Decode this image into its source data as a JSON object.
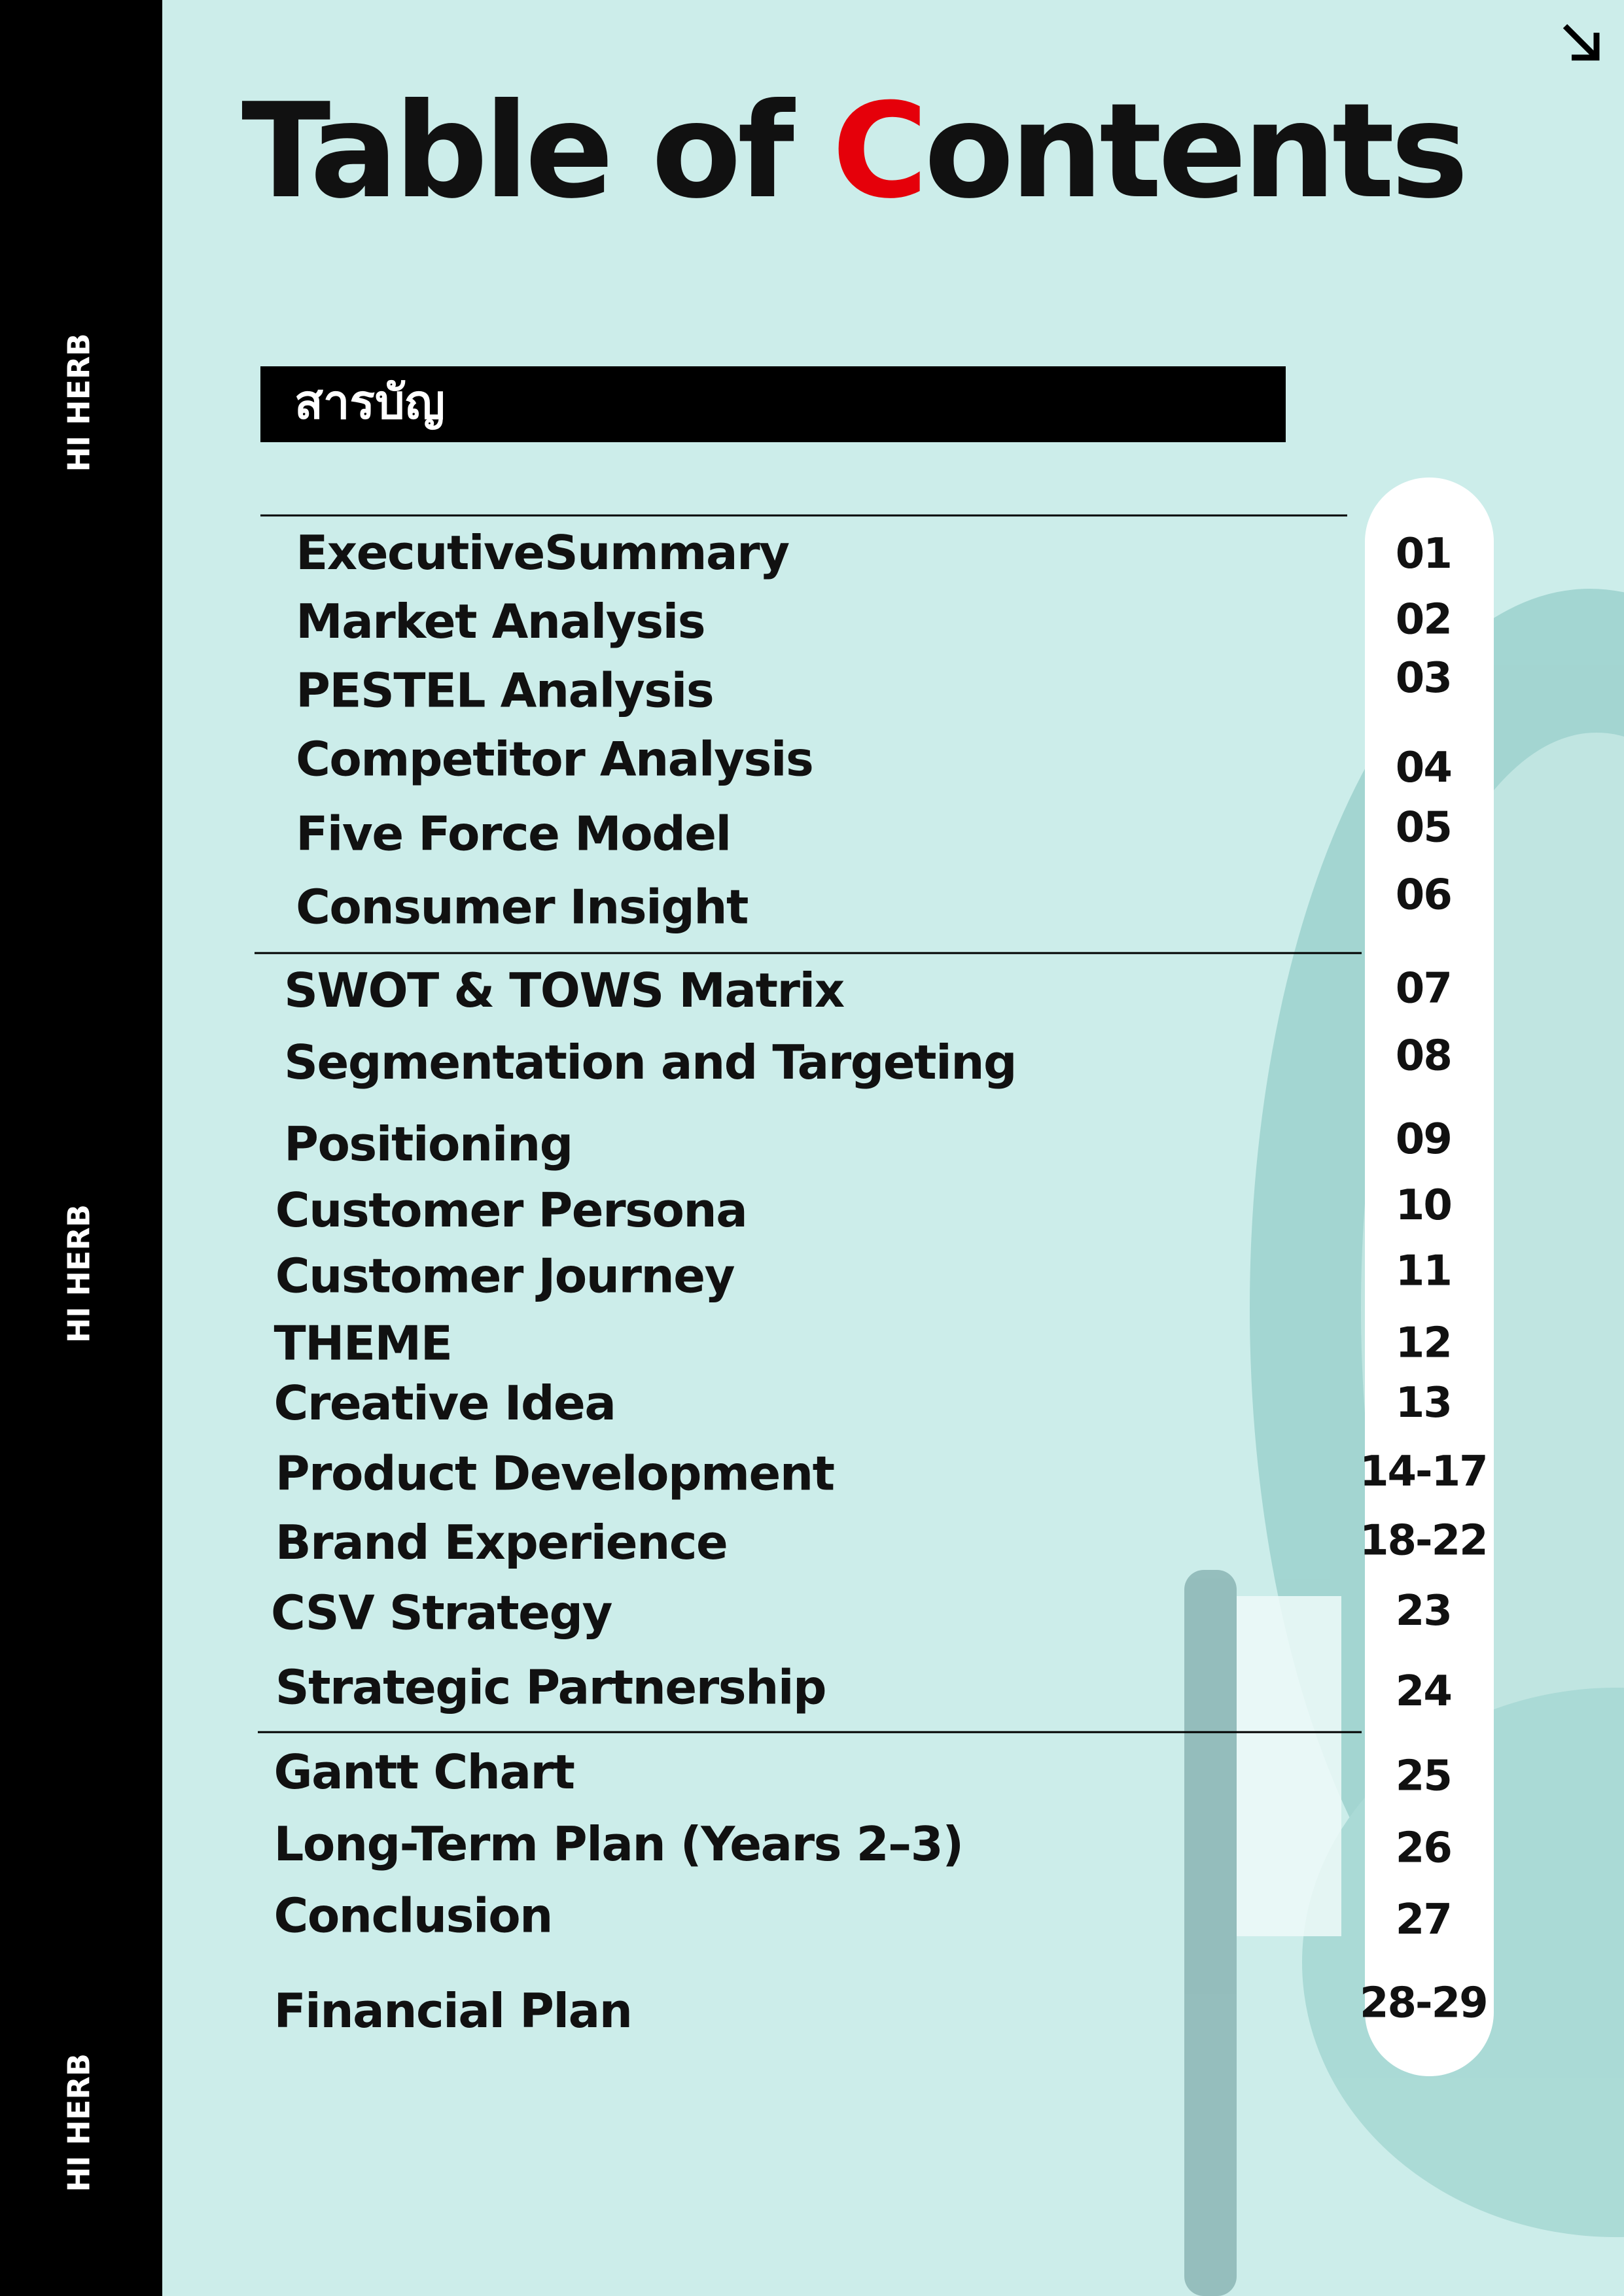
{
  "sidebar": [
    "HI HERB",
    "HI HERB",
    "HI HERB"
  ],
  "title": {
    "before": "Table of ",
    "accent": "C",
    "after": "ontents"
  },
  "subtitle": "สารบัญ",
  "sections": [
    {
      "entries": [
        {
          "label": "ExecutiveSummary",
          "page": "01"
        },
        {
          "label": "Market Analysis",
          "page": "02"
        },
        {
          "label": "PESTEL Analysis",
          "page": "03"
        },
        {
          "label": "Competitor Analysis",
          "page": "04"
        },
        {
          "label": "Five Force Model",
          "page": "05"
        },
        {
          "label": "Consumer Insight",
          "page": "06"
        }
      ]
    },
    {
      "entries": [
        {
          "label": "SWOT & TOWS Matrix",
          "page": "07"
        },
        {
          "label": "Segmentation  and Targeting",
          "page": "08"
        },
        {
          "label": "Positioning",
          "page": "09"
        },
        {
          "label": "Customer Persona",
          "page": "10"
        },
        {
          "label": "Customer Journey",
          "page": "11"
        },
        {
          "label": "THEME",
          "page": "12"
        },
        {
          "label": "Creative Idea",
          "page": "13"
        },
        {
          "label": "Product Development",
          "page": "14-17"
        },
        {
          "label": "Brand Experience",
          "page": "18-22"
        },
        {
          "label": "CSV Strategy",
          "page": "23"
        },
        {
          "label": "Strategic Partnership",
          "page": "24"
        }
      ]
    },
    {
      "entries": [
        {
          "label": "Gantt Chart",
          "page": "25"
        },
        {
          "label": "Long-Term Plan (Years 2–3)",
          "page": "26"
        },
        {
          "label": "Conclusion",
          "page": "27"
        },
        {
          "label": "Financial Plan",
          "page": "28-29"
        }
      ]
    }
  ]
}
